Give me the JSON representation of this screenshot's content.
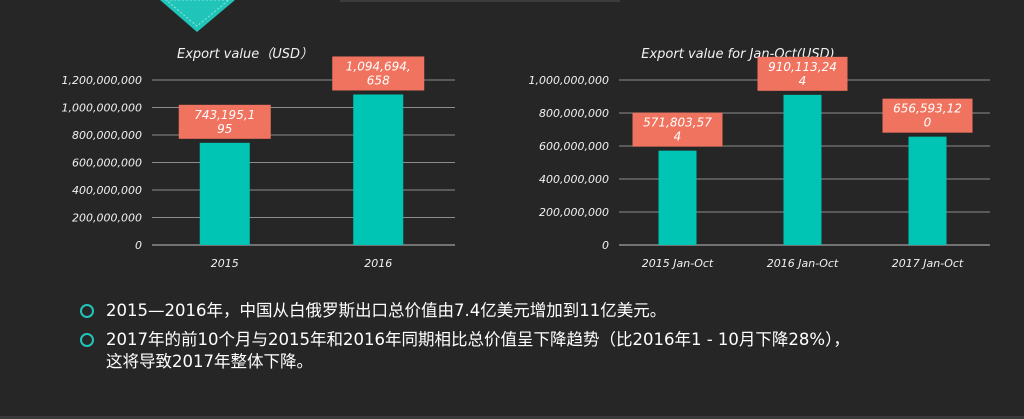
{
  "chart_data": [
    {
      "type": "bar",
      "title": "Export value（USD）",
      "categories": [
        "2015",
        "2016"
      ],
      "values": [
        743195195,
        1094694658
      ],
      "data_labels": [
        "743,195,1\n95",
        "1,094,694,\n658"
      ],
      "ylim": [
        0,
        1200000000
      ],
      "yticks": [
        "0",
        "200,000,000",
        "400,000,000",
        "600,000,000",
        "800,000,000",
        "1,000,000,000",
        "1,200,000,000"
      ],
      "grid": true,
      "bar_color": "#00c5b5",
      "label_color": "#f0735f"
    },
    {
      "type": "bar",
      "title": "Export value for Jan-Oct(USD)",
      "categories": [
        "2015 Jan-Oct",
        "2016 Jan-Oct",
        "2017 Jan-Oct"
      ],
      "values": [
        571803574,
        910113244,
        656593120
      ],
      "data_labels": [
        "571,803,57\n4",
        "910,113,24\n4",
        "656,593,12\n0"
      ],
      "ylim": [
        0,
        1000000000
      ],
      "yticks": [
        "0",
        "200,000,000",
        "400,000,000",
        "600,000,000",
        "800,000,000",
        "1,000,000,000"
      ],
      "grid": true,
      "bar_color": "#00c5b5",
      "label_color": "#f0735f"
    }
  ],
  "bullets": [
    "2015—2016年，中国从白俄罗斯出口总价值由7.4亿美元增加到11亿美元。",
    "2017年的前10个月与2015年和2016年同期相比总价值呈下降趋势（比2016年1 - 10月下降28%），\n这将导致2017年整体下降。"
  ],
  "colors": {
    "accent": "#21c4b8",
    "background": "#262626"
  }
}
